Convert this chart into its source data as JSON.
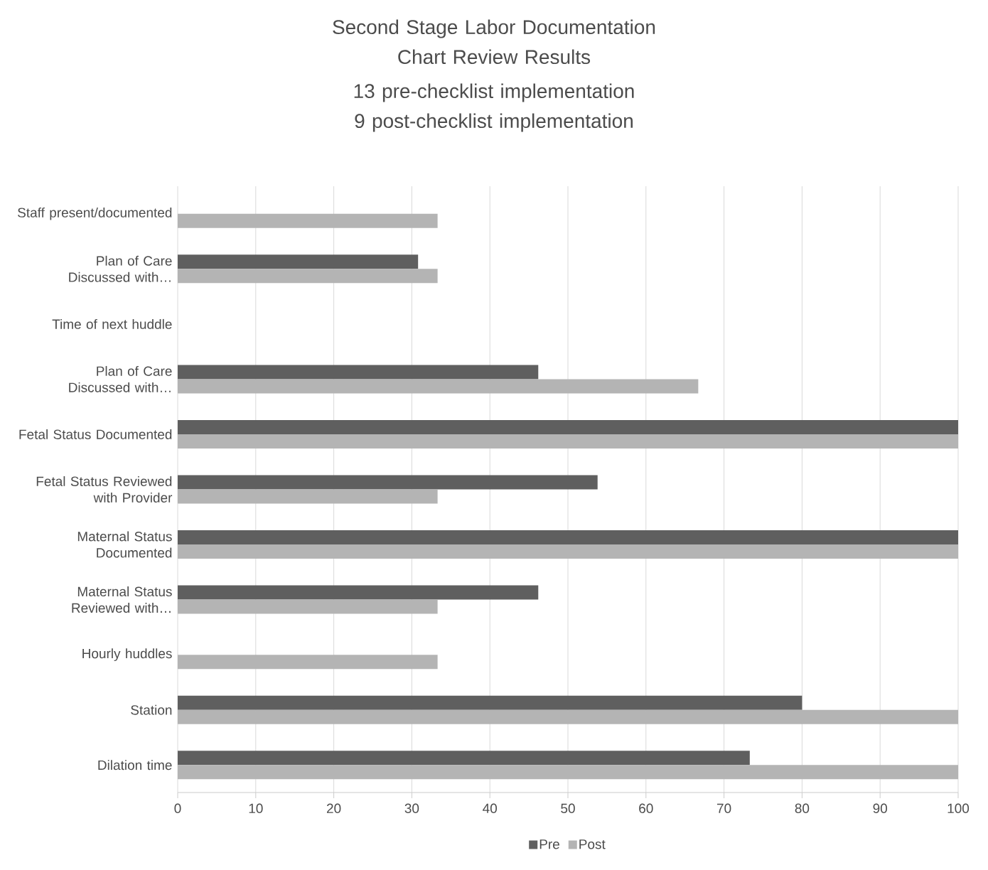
{
  "chart_data": {
    "type": "bar",
    "orientation": "horizontal",
    "title": "Second Stage Labor Documentation Chart Review Results",
    "subtitle": "13 pre-checklist implementation 9 post-checklist implementation",
    "categories": [
      "Staff present/documented",
      "Plan of Care Discussed with…",
      "Time of next huddle",
      "Plan of Care Discussed with…",
      "Fetal Status Documented",
      "Fetal Status Reviewed with Provider",
      "Maternal Status Documented",
      "Maternal Status Reviewed with…",
      "Hourly huddles",
      "Station",
      "Dilation time"
    ],
    "series": [
      {
        "name": "Pre",
        "color": "#5f5f5f",
        "values": [
          null,
          30.8,
          null,
          46.2,
          100,
          53.8,
          100,
          46.2,
          null,
          80,
          73.3
        ]
      },
      {
        "name": "Post",
        "color": "#b4b4b4",
        "values": [
          33.3,
          33.3,
          null,
          66.7,
          100,
          33.3,
          100,
          33.3,
          33.3,
          100,
          100
        ]
      }
    ],
    "xlim": [
      0,
      100
    ],
    "xticks": [
      0,
      10,
      20,
      30,
      40,
      50,
      60,
      70,
      80,
      90,
      100
    ],
    "grid": "x",
    "legend": "bottom"
  }
}
